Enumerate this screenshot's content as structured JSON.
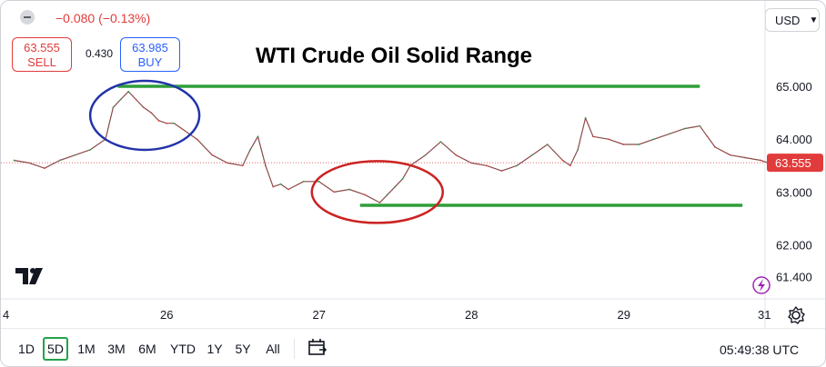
{
  "header": {
    "change": "−0.080 (−0.13%)",
    "sell_price": "63.555",
    "sell_label": "SELL",
    "spread": "0.430",
    "buy_price": "63.985",
    "buy_label": "BUY",
    "currency": "USD"
  },
  "toolbar": {
    "timeframes": [
      "1D",
      "5D",
      "1M",
      "3M",
      "6M",
      "YTD",
      "1Y",
      "5Y",
      "All"
    ],
    "active_timeframe": "5D",
    "clock": "05:49:38 UTC"
  },
  "colors": {
    "up": "#22a34c",
    "down": "#e23b3b",
    "annotation_line": "#2e9e3a",
    "circle_blue": "#2233aa",
    "circle_red": "#cc2222",
    "price_tag": "#e23b3b"
  },
  "chart_data": {
    "type": "line",
    "title": "WTI Crude Oil Solid Range",
    "x_tick_labels": [
      "4",
      "26",
      "27",
      "28",
      "29",
      "31"
    ],
    "y_tick_labels": [
      "65.000",
      "64.000",
      "63.000",
      "62.000",
      "61.400"
    ],
    "current_price_label": "63.555",
    "xlim": [
      25.0,
      30.0
    ],
    "ylim": [
      61.4,
      65.4
    ],
    "grid": false,
    "series": [
      {
        "x": [
          25.0,
          25.1,
          25.2,
          25.3,
          25.4,
          25.5,
          25.6,
          25.65,
          25.7,
          25.75,
          25.8,
          25.85,
          25.9,
          25.95,
          26.0,
          26.05,
          26.1,
          26.2,
          26.3,
          26.4,
          26.5,
          26.55,
          26.6,
          26.65,
          26.7,
          26.75,
          26.8,
          26.9,
          27.0,
          27.1,
          27.2,
          27.3,
          27.4,
          27.45,
          27.5,
          27.55,
          27.6,
          27.7,
          27.8,
          27.9,
          28.0,
          28.1,
          28.2,
          28.3,
          28.4,
          28.5,
          28.6,
          28.65,
          28.7,
          28.75,
          28.8,
          28.9,
          29.0,
          29.1,
          29.2,
          29.3,
          29.4,
          29.5,
          29.55,
          29.6,
          29.7,
          29.8,
          29.9,
          29.95
        ],
        "y": [
          63.6,
          63.55,
          63.45,
          63.6,
          63.7,
          63.8,
          64.0,
          64.6,
          64.75,
          64.9,
          64.75,
          64.6,
          64.5,
          64.35,
          64.3,
          64.3,
          64.2,
          64.0,
          63.7,
          63.55,
          63.5,
          63.8,
          64.05,
          63.5,
          63.1,
          63.15,
          63.05,
          63.2,
          63.2,
          63.0,
          63.05,
          62.95,
          62.8,
          62.95,
          63.1,
          63.25,
          63.5,
          63.7,
          63.95,
          63.7,
          63.55,
          63.5,
          63.4,
          63.5,
          63.7,
          63.9,
          63.6,
          63.5,
          63.8,
          64.4,
          64.05,
          64.0,
          63.9,
          63.9,
          64.0,
          64.1,
          64.2,
          64.25,
          64.05,
          63.85,
          63.7,
          63.65,
          63.6,
          63.55
        ]
      }
    ],
    "annotations": {
      "resistance_level": 65.0,
      "support_level": 62.75,
      "marked_high_x": 25.75,
      "marked_low_x": 27.3
    }
  }
}
